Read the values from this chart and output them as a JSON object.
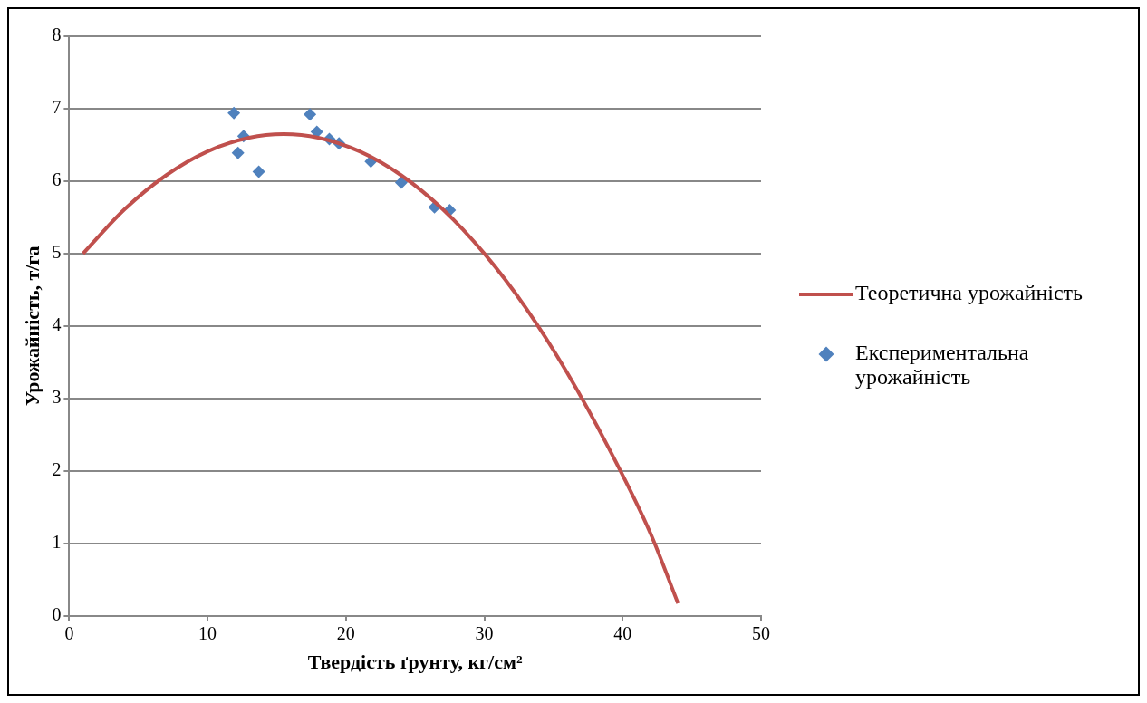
{
  "chart_data": {
    "type": "scatter",
    "xlabel": "Твердість ґрунту, кг/см²",
    "ylabel": "Урожайність, т/га",
    "xlim": [
      0,
      50
    ],
    "xticks": [
      0,
      10,
      20,
      30,
      40,
      50
    ],
    "ylim": [
      0,
      8
    ],
    "yticks": [
      0,
      1,
      2,
      3,
      4,
      5,
      6,
      7,
      8
    ],
    "grid": "y",
    "legend": "right",
    "marker": "diamond",
    "series": [
      {
        "name": "Теоретична урожайність",
        "type": "line",
        "color": "#c0504d",
        "marker": "none",
        "x": [
          1,
          4,
          7,
          10,
          13,
          15.5,
          18,
          21,
          24,
          27,
          30,
          33,
          36,
          39,
          42,
          44
        ],
        "values": [
          5.0,
          5.61,
          6.08,
          6.41,
          6.6,
          6.65,
          6.6,
          6.41,
          6.08,
          5.61,
          5.0,
          4.25,
          3.35,
          2.31,
          1.14,
          0.17
        ]
      },
      {
        "name": "Експериментальна урожайність",
        "type": "scatter",
        "color": "#4f81bd",
        "x": [
          11.9,
          12.6,
          12.2,
          13.7,
          17.4,
          17.9,
          18.8,
          19.5,
          21.8,
          24.0,
          26.4,
          27.5
        ],
        "values": [
          6.94,
          6.62,
          6.39,
          6.13,
          6.92,
          6.68,
          6.58,
          6.52,
          6.27,
          5.98,
          5.64,
          5.6
        ]
      }
    ]
  }
}
